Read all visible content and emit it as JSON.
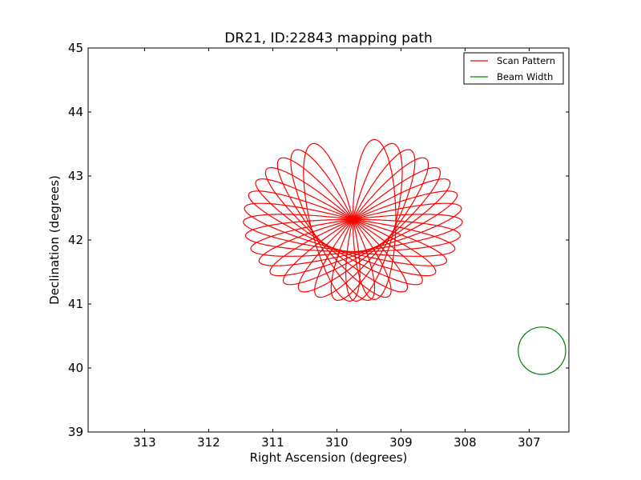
{
  "chart_data": {
    "type": "line",
    "title": "DR21, ID:22843 mapping path",
    "xlabel": "Right Ascension (degrees)",
    "ylabel": "Declination (degrees)",
    "xlim": [
      313.88,
      306.38
    ],
    "ylim": [
      39,
      45
    ],
    "x_ticks": [
      313,
      312,
      311,
      310,
      309,
      308,
      307
    ],
    "x_tick_labels": [
      "313",
      "312",
      "311",
      "310",
      "309",
      "308",
      "307"
    ],
    "y_ticks": [
      39,
      40,
      41,
      42,
      43,
      44,
      45
    ],
    "y_tick_labels": [
      "39",
      "40",
      "41",
      "42",
      "43",
      "44",
      "45"
    ],
    "grid": false,
    "legend_placement": "top-right",
    "series": [
      {
        "name": "Scan Pattern",
        "color": "#ff0000",
        "kind": "daisy",
        "center": [
          309.75,
          42.32
        ],
        "petals": 18,
        "petal_radius_ra_deg": 3.35,
        "petal_radius_dec_deg": 2.5,
        "petal_half_width_deg": 0.2
      },
      {
        "name": "Beam Width",
        "color": "#008000",
        "kind": "circle",
        "center": [
          306.8,
          40.27
        ],
        "radius_dec_deg": 0.37
      }
    ]
  }
}
